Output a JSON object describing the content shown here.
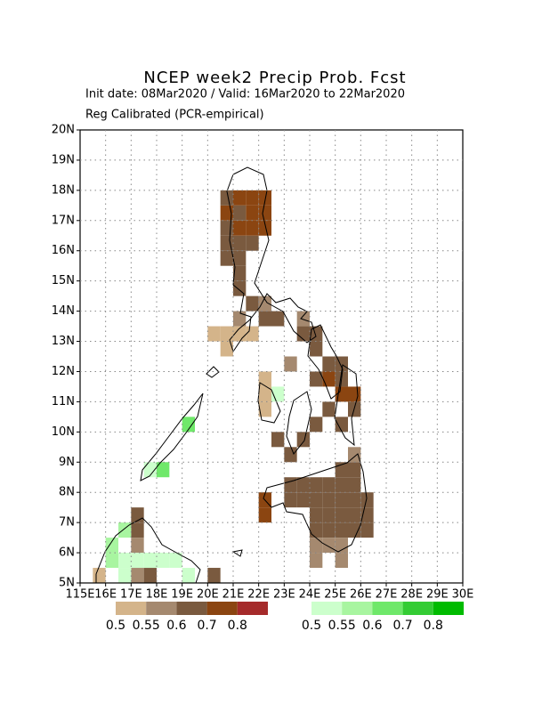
{
  "chart_data": {
    "type": "map",
    "title": "NCEP week2 Precip Prob. Fcst",
    "subtitle": "Init date: 08Mar2020 / Valid: 16Mar2020 to 22Mar2020",
    "method": "Reg Calibrated (PCR-empirical)",
    "xlim": [
      115,
      130
    ],
    "ylim": [
      5,
      20
    ],
    "grid": true,
    "cell_size": 0.5,
    "xticks": [
      {
        "value": 115,
        "label": "115E"
      },
      {
        "value": 116,
        "label": "16E"
      },
      {
        "value": 117,
        "label": "17E"
      },
      {
        "value": 118,
        "label": "18E"
      },
      {
        "value": 119,
        "label": "19E"
      },
      {
        "value": 120,
        "label": "20E"
      },
      {
        "value": 121,
        "label": "21E"
      },
      {
        "value": 122,
        "label": "22E"
      },
      {
        "value": 123,
        "label": "23E"
      },
      {
        "value": 124,
        "label": "24E"
      },
      {
        "value": 125,
        "label": "25E"
      },
      {
        "value": 126,
        "label": "26E"
      },
      {
        "value": 127,
        "label": "27E"
      },
      {
        "value": 128,
        "label": "28E"
      },
      {
        "value": 129,
        "label": "29E"
      },
      {
        "value": 130,
        "label": "30E"
      }
    ],
    "yticks": [
      {
        "value": 5,
        "label": "5N"
      },
      {
        "value": 6,
        "label": "6N"
      },
      {
        "value": 7,
        "label": "7N"
      },
      {
        "value": 8,
        "label": "8N"
      },
      {
        "value": 9,
        "label": "9N"
      },
      {
        "value": 10,
        "label": "10N"
      },
      {
        "value": 11,
        "label": "11N"
      },
      {
        "value": 12,
        "label": "12N"
      },
      {
        "value": 13,
        "label": "13N"
      },
      {
        "value": 14,
        "label": "14N"
      },
      {
        "value": 15,
        "label": "15N"
      },
      {
        "value": 16,
        "label": "16N"
      },
      {
        "value": 17,
        "label": "17N"
      },
      {
        "value": 18,
        "label": "18N"
      },
      {
        "value": 19,
        "label": "19N"
      },
      {
        "value": 20,
        "label": "20N"
      }
    ],
    "legend_levels": [
      0.5,
      0.55,
      0.6,
      0.7,
      0.8
    ],
    "dry_colors": [
      "#d4b48a",
      "#a5896f",
      "#7a5a3f",
      "#8b4511",
      "#a52a2a"
    ],
    "wet_colors": [
      "#ccffcc",
      "#a8f5a0",
      "#6fe86a",
      "#34cc34",
      "#00bb00"
    ],
    "dry_cells": [
      [
        121,
        17.5,
        0.7
      ],
      [
        121.5,
        17.5,
        0.7
      ],
      [
        122,
        17.5,
        0.7
      ],
      [
        121.5,
        17,
        0.7
      ],
      [
        122,
        17,
        0.7
      ],
      [
        121,
        16.5,
        0.7
      ],
      [
        121.5,
        16.5,
        0.7
      ],
      [
        122,
        16.5,
        0.7
      ],
      [
        120.5,
        17,
        0.7
      ],
      [
        120.5,
        17.5,
        0.6
      ],
      [
        121,
        17,
        0.6
      ],
      [
        120.5,
        16.5,
        0.6
      ],
      [
        120.5,
        16,
        0.6
      ],
      [
        121,
        16,
        0.6
      ],
      [
        121.5,
        16,
        0.6
      ],
      [
        120.5,
        15.5,
        0.6
      ],
      [
        121,
        15.5,
        0.6
      ],
      [
        121,
        15,
        0.6
      ],
      [
        121,
        14.5,
        0.6
      ],
      [
        121.5,
        14,
        0.6
      ],
      [
        122,
        13.5,
        0.6
      ],
      [
        122.5,
        13.5,
        0.6
      ],
      [
        123.5,
        13,
        0.6
      ],
      [
        124,
        13,
        0.6
      ],
      [
        124,
        12.5,
        0.6
      ],
      [
        122,
        14,
        0.55
      ],
      [
        121,
        13.5,
        0.55
      ],
      [
        123,
        12,
        0.55
      ],
      [
        123.5,
        13.5,
        0.55
      ],
      [
        120,
        13,
        0.5
      ],
      [
        120.5,
        13,
        0.5
      ],
      [
        121,
        13,
        0.5
      ],
      [
        120.5,
        12.5,
        0.5
      ],
      [
        121.5,
        13,
        0.5
      ],
      [
        122,
        11,
        0.5
      ],
      [
        122,
        11.5,
        0.5
      ],
      [
        122,
        10.5,
        0.5
      ],
      [
        124,
        11.5,
        0.6
      ],
      [
        124.5,
        12,
        0.6
      ],
      [
        125,
        12,
        0.6
      ],
      [
        125,
        11.5,
        0.6
      ],
      [
        124.5,
        10.5,
        0.6
      ],
      [
        124,
        10,
        0.6
      ],
      [
        123.5,
        9.5,
        0.6
      ],
      [
        123,
        9,
        0.6
      ],
      [
        125,
        10,
        0.6
      ],
      [
        125.5,
        10.5,
        0.6
      ],
      [
        122.5,
        9.5,
        0.6
      ],
      [
        125,
        11,
        0.7
      ],
      [
        125.5,
        11,
        0.7
      ],
      [
        124.5,
        11.5,
        0.7
      ],
      [
        122,
        7,
        0.7
      ],
      [
        122,
        7.5,
        0.7
      ],
      [
        123,
        8,
        0.6
      ],
      [
        123.5,
        8,
        0.6
      ],
      [
        124,
        8,
        0.6
      ],
      [
        124.5,
        8,
        0.6
      ],
      [
        125,
        8,
        0.6
      ],
      [
        125.5,
        8,
        0.6
      ],
      [
        123,
        7.5,
        0.6
      ],
      [
        123.5,
        7.5,
        0.6
      ],
      [
        124,
        7.5,
        0.6
      ],
      [
        124.5,
        7.5,
        0.6
      ],
      [
        125,
        7.5,
        0.6
      ],
      [
        125.5,
        7.5,
        0.6
      ],
      [
        126,
        7.5,
        0.6
      ],
      [
        124,
        7,
        0.6
      ],
      [
        124.5,
        7,
        0.6
      ],
      [
        125,
        7,
        0.6
      ],
      [
        125.5,
        7,
        0.6
      ],
      [
        126,
        7,
        0.6
      ],
      [
        124,
        6.5,
        0.6
      ],
      [
        124.5,
        6.5,
        0.6
      ],
      [
        125,
        6.5,
        0.6
      ],
      [
        125.5,
        6.5,
        0.6
      ],
      [
        126,
        6.5,
        0.6
      ],
      [
        125,
        8.5,
        0.6
      ],
      [
        125.5,
        8.5,
        0.6
      ],
      [
        124,
        6,
        0.55
      ],
      [
        124,
        5.5,
        0.55
      ],
      [
        124.5,
        6,
        0.55
      ],
      [
        125,
        5.5,
        0.55
      ],
      [
        125,
        6,
        0.55
      ],
      [
        125.5,
        9,
        0.55
      ],
      [
        117,
        7,
        0.6
      ],
      [
        117,
        6.5,
        0.6
      ],
      [
        117,
        6,
        0.55
      ],
      [
        117,
        5,
        0.55
      ],
      [
        117.5,
        5,
        0.6
      ],
      [
        120,
        5,
        0.6
      ],
      [
        115.5,
        5,
        0.5
      ]
    ],
    "wet_cells": [
      [
        116,
        6,
        0.55
      ],
      [
        116,
        5.5,
        0.55
      ],
      [
        116.5,
        6.5,
        0.55
      ],
      [
        116.5,
        5.5,
        0.5
      ],
      [
        117,
        5.5,
        0.5
      ],
      [
        117.5,
        5.5,
        0.5
      ],
      [
        118,
        5.5,
        0.5
      ],
      [
        118.5,
        5.5,
        0.5
      ],
      [
        119,
        5,
        0.5
      ],
      [
        116.5,
        5,
        0.5
      ],
      [
        117.5,
        8.5,
        0.5
      ],
      [
        118,
        8.5,
        0.6
      ],
      [
        119,
        10,
        0.6
      ],
      [
        122.5,
        11,
        0.5
      ]
    ]
  }
}
